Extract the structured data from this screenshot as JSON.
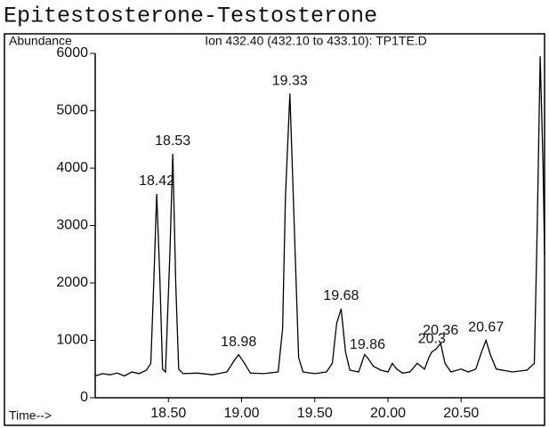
{
  "chart_data": {
    "type": "line",
    "title": "Epitestosterone-Testosterone",
    "subtitle": "Ion 432.40 (432.10 to 433.10): TP1TE.D",
    "y_label": "Abundance",
    "x_label": "Time-->",
    "color": "#000000",
    "xlim": [
      18.0,
      21.07
    ],
    "ylim": [
      0,
      6000
    ],
    "yticks": [
      0,
      1000,
      2000,
      3000,
      4000,
      5000,
      6000
    ],
    "xticks": [
      {
        "value": 18.5,
        "label": "18.50"
      },
      {
        "value": 19.0,
        "label": "19.00"
      },
      {
        "value": 19.5,
        "label": "19.50"
      },
      {
        "value": 20.0,
        "label": "20.00"
      },
      {
        "value": 20.5,
        "label": "20.50"
      }
    ],
    "x": [
      18.0,
      18.05,
      18.1,
      18.15,
      18.2,
      18.25,
      18.3,
      18.35,
      18.38,
      18.4,
      18.42,
      18.44,
      18.46,
      18.48,
      18.51,
      18.53,
      18.55,
      18.57,
      18.6,
      18.7,
      18.8,
      18.9,
      18.95,
      18.98,
      19.02,
      19.06,
      19.15,
      19.25,
      19.28,
      19.3,
      19.33,
      19.36,
      19.39,
      19.42,
      19.5,
      19.58,
      19.62,
      19.65,
      19.68,
      19.71,
      19.74,
      19.8,
      19.84,
      19.86,
      19.9,
      19.95,
      20.0,
      20.03,
      20.06,
      20.1,
      20.15,
      20.2,
      20.25,
      20.28,
      20.3,
      20.33,
      20.36,
      20.39,
      20.43,
      20.5,
      20.55,
      20.6,
      20.64,
      20.67,
      20.7,
      20.74,
      20.85,
      20.95,
      21.0,
      21.02,
      21.04,
      21.06,
      21.07
    ],
    "values": [
      380,
      420,
      400,
      430,
      380,
      450,
      420,
      480,
      600,
      2000,
      3550,
      2200,
      500,
      450,
      2500,
      4250,
      2000,
      500,
      420,
      430,
      400,
      450,
      650,
      750,
      600,
      430,
      420,
      450,
      1200,
      3500,
      5300,
      3000,
      700,
      450,
      420,
      450,
      600,
      1300,
      1550,
      800,
      480,
      450,
      750,
      700,
      550,
      480,
      450,
      600,
      500,
      430,
      450,
      600,
      500,
      700,
      800,
      850,
      950,
      600,
      450,
      500,
      450,
      500,
      800,
      1000,
      750,
      500,
      450,
      480,
      600,
      3000,
      5950,
      4000,
      2500
    ],
    "peaks": [
      {
        "time": 18.42,
        "height": 3550
      },
      {
        "time": 18.53,
        "height": 4250
      },
      {
        "time": 18.98,
        "height": 750
      },
      {
        "time": 19.33,
        "height": 5300
      },
      {
        "time": 19.68,
        "height": 1550
      },
      {
        "time": 19.86,
        "height": 700
      },
      {
        "time": 20.3,
        "height": 800
      },
      {
        "time": 20.36,
        "height": 950
      },
      {
        "time": 20.67,
        "height": 1000
      }
    ]
  }
}
